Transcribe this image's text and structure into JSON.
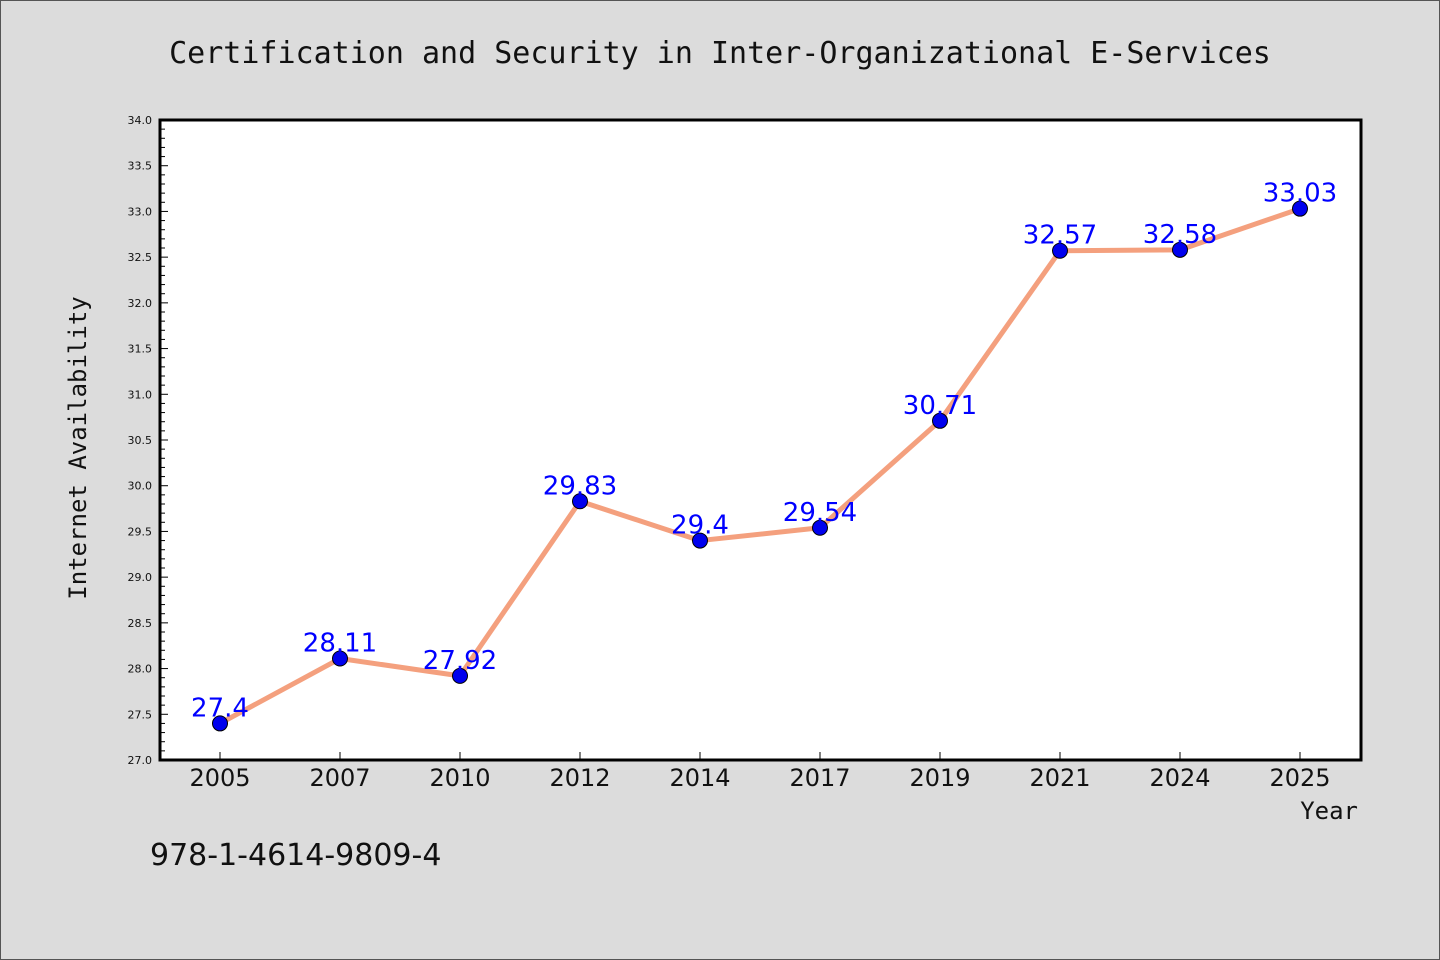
{
  "chart_data": {
    "type": "line",
    "title": "Certification and Security in Inter-Organizational E-Services",
    "xlabel": "Year",
    "ylabel": "Internet Availability",
    "categories": [
      "2005",
      "2007",
      "2010",
      "2012",
      "2014",
      "2017",
      "2019",
      "2021",
      "2024",
      "2025"
    ],
    "series": [
      {
        "values": [
          27.4,
          28.11,
          27.92,
          29.83,
          29.4,
          29.54,
          30.71,
          32.57,
          32.58,
          33.03
        ],
        "labels": [
          "27.4",
          "28.11",
          "27.92",
          "29.83",
          "29.4",
          "29.54",
          "30.71",
          "32.57",
          "32.58",
          "33.03"
        ]
      }
    ],
    "ylim": [
      27.0,
      34.0
    ],
    "yticks": [
      "27.0",
      "27.5",
      "28.0",
      "28.5",
      "29.0",
      "29.5",
      "30.0",
      "30.5",
      "31.0",
      "31.5",
      "32.0",
      "32.5",
      "33.0",
      "33.5",
      "34.0"
    ],
    "grid": false,
    "colors": {
      "line": "#f4a07e",
      "marker": "#0000ee",
      "label": "#0000ff",
      "background": "#dcdcdc",
      "plot_area": "#ffffff"
    }
  },
  "annotation": "978-1-4614-9809-4"
}
